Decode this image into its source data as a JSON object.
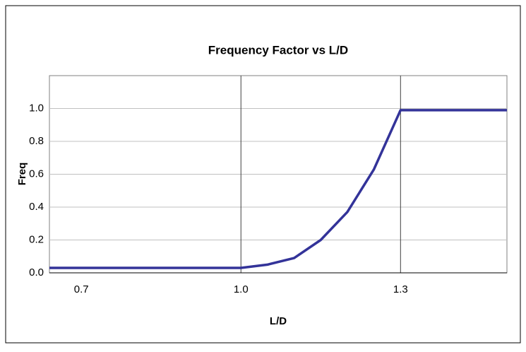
{
  "chart_data": {
    "type": "line",
    "title": "Frequency Factor  vs L/D",
    "xlabel": "L/D",
    "ylabel": "Freq",
    "x": [
      0.64,
      0.7,
      0.8,
      0.9,
      1.0,
      1.05,
      1.1,
      1.15,
      1.2,
      1.25,
      1.3,
      1.4,
      1.5
    ],
    "series": [
      {
        "name": "Freq",
        "color": "#333399",
        "values": [
          0.03,
          0.03,
          0.03,
          0.03,
          0.03,
          0.05,
          0.09,
          0.2,
          0.37,
          0.63,
          0.99,
          0.99,
          0.99
        ]
      }
    ],
    "xlim": [
      0.64,
      1.5
    ],
    "xticks": [
      {
        "value": 0.7,
        "label": "0.7"
      },
      {
        "value": 1.0,
        "label": "1.0"
      },
      {
        "value": 1.3,
        "label": "1.3"
      }
    ],
    "ylim": [
      0,
      1.2
    ],
    "yticks": [
      {
        "value": 0,
        "label": "0.0"
      },
      {
        "value": 0.2,
        "label": "0.2"
      },
      {
        "value": 0.4,
        "label": "0.4"
      },
      {
        "value": 0.6,
        "label": "0.6"
      },
      {
        "value": 0.8,
        "label": "0.8"
      },
      {
        "value": 1.0,
        "label": "1.0"
      }
    ],
    "grid": true,
    "xgrid": [
      1,
      2
    ]
  }
}
